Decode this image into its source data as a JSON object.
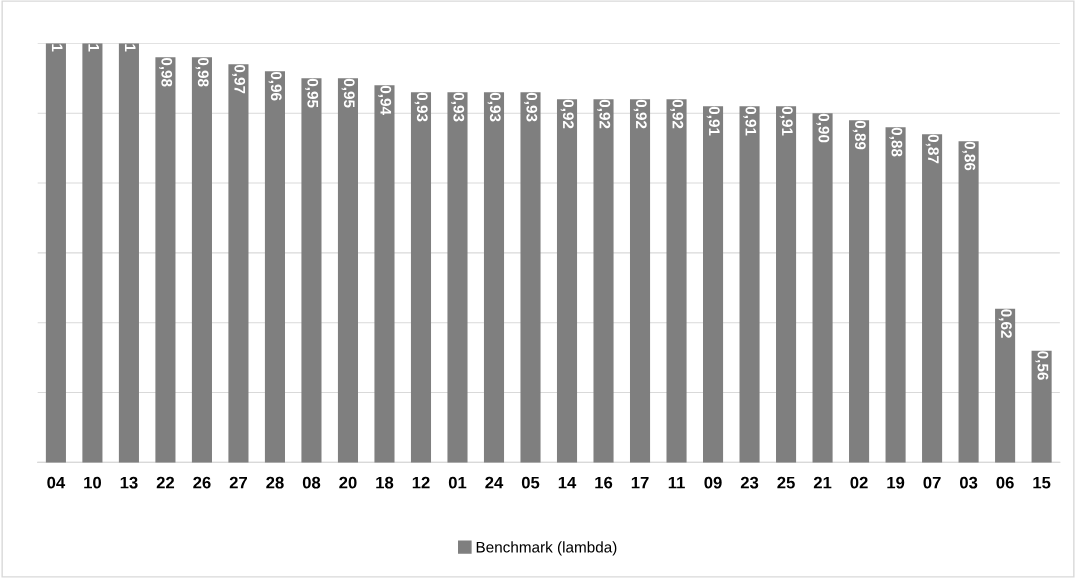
{
  "chart_data": {
    "type": "bar",
    "categories": [
      "04",
      "10",
      "13",
      "22",
      "26",
      "27",
      "28",
      "08",
      "20",
      "18",
      "12",
      "01",
      "24",
      "05",
      "14",
      "16",
      "17",
      "11",
      "09",
      "23",
      "25",
      "21",
      "02",
      "19",
      "07",
      "03",
      "06",
      "15"
    ],
    "series": [
      {
        "name": "Benchmark (lambda)",
        "color": "#7f7f7f",
        "values": [
          1,
          1,
          1,
          0.98,
          0.98,
          0.97,
          0.96,
          0.95,
          0.95,
          0.94,
          0.93,
          0.93,
          0.93,
          0.93,
          0.92,
          0.92,
          0.92,
          0.92,
          0.91,
          0.91,
          0.91,
          0.9,
          0.89,
          0.88,
          0.87,
          0.86,
          0.62,
          0.56
        ],
        "value_labels": [
          "1",
          "1",
          "1",
          "0,98",
          "0,98",
          "0,97",
          "0,96",
          "0,95",
          "0,95",
          "0,94",
          "0,93",
          "0,93",
          "0,93",
          "0,93",
          "0,92",
          "0,92",
          "0,92",
          "0,92",
          "0,91",
          "0,91",
          "0,91",
          "0,90",
          "0,89",
          "0,88",
          "0,87",
          "0,86",
          "0,62",
          "0,56"
        ]
      }
    ],
    "ylim": [
      0.4,
      1.0
    ],
    "yticks": [
      {
        "value": 0.4,
        "label": null
      },
      {
        "value": 0.5,
        "label": null
      },
      {
        "value": 0.6,
        "label": null
      },
      {
        "value": 0.7,
        "label": null
      },
      {
        "value": 0.8,
        "label": null
      },
      {
        "value": 0.9,
        "label": null
      },
      {
        "value": 1.0,
        "label": null
      }
    ],
    "grid": "y",
    "legend": "bottom",
    "tick_labels": "x"
  }
}
